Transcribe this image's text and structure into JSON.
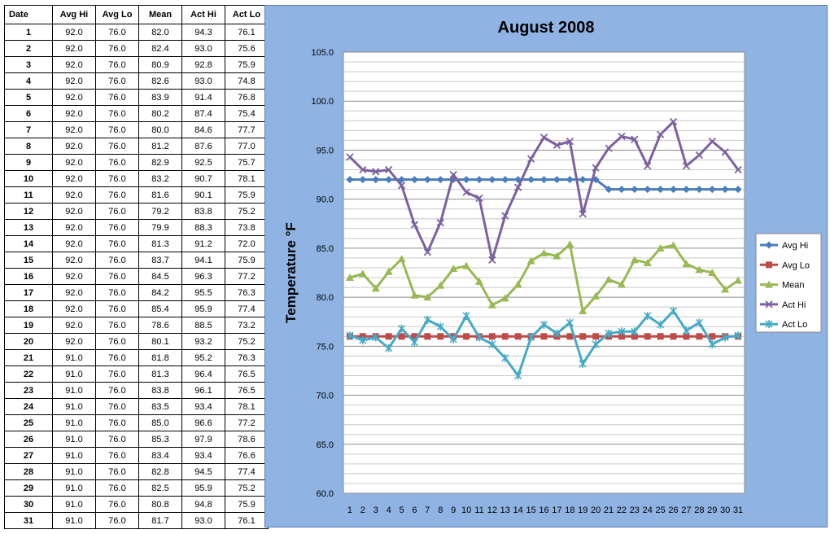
{
  "table": {
    "headers": [
      "Date",
      "Avg Hi",
      "Avg Lo",
      "Mean",
      "Act Hi",
      "Act Lo"
    ],
    "rows": [
      [
        "1",
        "92.0",
        "76.0",
        "82.0",
        "94.3",
        "76.1"
      ],
      [
        "2",
        "92.0",
        "76.0",
        "82.4",
        "93.0",
        "75.6"
      ],
      [
        "3",
        "92.0",
        "76.0",
        "80.9",
        "92.8",
        "75.9"
      ],
      [
        "4",
        "92.0",
        "76.0",
        "82.6",
        "93.0",
        "74.8"
      ],
      [
        "5",
        "92.0",
        "76.0",
        "83.9",
        "91.4",
        "76.8"
      ],
      [
        "6",
        "92.0",
        "76.0",
        "80.2",
        "87.4",
        "75.4"
      ],
      [
        "7",
        "92.0",
        "76.0",
        "80.0",
        "84.6",
        "77.7"
      ],
      [
        "8",
        "92.0",
        "76.0",
        "81.2",
        "87.6",
        "77.0"
      ],
      [
        "9",
        "92.0",
        "76.0",
        "82.9",
        "92.5",
        "75.7"
      ],
      [
        "10",
        "92.0",
        "76.0",
        "83.2",
        "90.7",
        "78.1"
      ],
      [
        "11",
        "92.0",
        "76.0",
        "81.6",
        "90.1",
        "75.9"
      ],
      [
        "12",
        "92.0",
        "76.0",
        "79.2",
        "83.8",
        "75.2"
      ],
      [
        "13",
        "92.0",
        "76.0",
        "79.9",
        "88.3",
        "73.8"
      ],
      [
        "14",
        "92.0",
        "76.0",
        "81.3",
        "91.2",
        "72.0"
      ],
      [
        "15",
        "92.0",
        "76.0",
        "83.7",
        "94.1",
        "75.9"
      ],
      [
        "16",
        "92.0",
        "76.0",
        "84.5",
        "96.3",
        "77.2"
      ],
      [
        "17",
        "92.0",
        "76.0",
        "84.2",
        "95.5",
        "76.3"
      ],
      [
        "18",
        "92.0",
        "76.0",
        "85.4",
        "95.9",
        "77.4"
      ],
      [
        "19",
        "92.0",
        "76.0",
        "78.6",
        "88.5",
        "73.2"
      ],
      [
        "20",
        "92.0",
        "76.0",
        "80.1",
        "93.2",
        "75.2"
      ],
      [
        "21",
        "91.0",
        "76.0",
        "81.8",
        "95.2",
        "76.3"
      ],
      [
        "22",
        "91.0",
        "76.0",
        "81.3",
        "96.4",
        "76.5"
      ],
      [
        "23",
        "91.0",
        "76.0",
        "83.8",
        "96.1",
        "76.5"
      ],
      [
        "24",
        "91.0",
        "76.0",
        "83.5",
        "93.4",
        "78.1"
      ],
      [
        "25",
        "91.0",
        "76.0",
        "85.0",
        "96.6",
        "77.2"
      ],
      [
        "26",
        "91.0",
        "76.0",
        "85.3",
        "97.9",
        "78.6"
      ],
      [
        "27",
        "91.0",
        "76.0",
        "83.4",
        "93.4",
        "76.6"
      ],
      [
        "28",
        "91.0",
        "76.0",
        "82.8",
        "94.5",
        "77.4"
      ],
      [
        "29",
        "91.0",
        "76.0",
        "82.5",
        "95.9",
        "75.2"
      ],
      [
        "30",
        "91.0",
        "76.0",
        "80.8",
        "94.8",
        "75.9"
      ],
      [
        "31",
        "91.0",
        "76.0",
        "81.7",
        "93.0",
        "76.1"
      ]
    ]
  },
  "chart_data": {
    "type": "line",
    "title": "August 2008",
    "xlabel": "",
    "ylabel": "Temperature °F",
    "x": [
      1,
      2,
      3,
      4,
      5,
      6,
      7,
      8,
      9,
      10,
      11,
      12,
      13,
      14,
      15,
      16,
      17,
      18,
      19,
      20,
      21,
      22,
      23,
      24,
      25,
      26,
      27,
      28,
      29,
      30,
      31
    ],
    "ylim": [
      60,
      105
    ],
    "ytick_values": [
      60,
      65,
      70,
      75,
      80,
      85,
      90,
      95,
      100,
      105
    ],
    "ytick_labels": [
      "60.0",
      "65.0",
      "70.0",
      "75.0",
      "80.0",
      "85.0",
      "90.0",
      "95.0",
      "100.0",
      "105.0"
    ],
    "grid": true,
    "legend_position": "right",
    "series": [
      {
        "name": "Avg Hi",
        "color": "#4a7ebb",
        "marker": "diamond",
        "values": [
          92.0,
          92.0,
          92.0,
          92.0,
          92.0,
          92.0,
          92.0,
          92.0,
          92.0,
          92.0,
          92.0,
          92.0,
          92.0,
          92.0,
          92.0,
          92.0,
          92.0,
          92.0,
          92.0,
          92.0,
          91.0,
          91.0,
          91.0,
          91.0,
          91.0,
          91.0,
          91.0,
          91.0,
          91.0,
          91.0,
          91.0
        ]
      },
      {
        "name": "Avg Lo",
        "color": "#be4b48",
        "marker": "square",
        "values": [
          76.0,
          76.0,
          76.0,
          76.0,
          76.0,
          76.0,
          76.0,
          76.0,
          76.0,
          76.0,
          76.0,
          76.0,
          76.0,
          76.0,
          76.0,
          76.0,
          76.0,
          76.0,
          76.0,
          76.0,
          76.0,
          76.0,
          76.0,
          76.0,
          76.0,
          76.0,
          76.0,
          76.0,
          76.0,
          76.0,
          76.0
        ]
      },
      {
        "name": "Mean",
        "color": "#98b954",
        "marker": "triangle",
        "values": [
          82.0,
          82.4,
          80.9,
          82.6,
          83.9,
          80.2,
          80.0,
          81.2,
          82.9,
          83.2,
          81.6,
          79.2,
          79.9,
          81.3,
          83.7,
          84.5,
          84.2,
          85.4,
          78.6,
          80.1,
          81.8,
          81.3,
          83.8,
          83.5,
          85.0,
          85.3,
          83.4,
          82.8,
          82.5,
          80.8,
          81.7
        ]
      },
      {
        "name": "Act Hi",
        "color": "#7d60a0",
        "marker": "x",
        "values": [
          94.3,
          93.0,
          92.8,
          93.0,
          91.4,
          87.4,
          84.6,
          87.6,
          92.5,
          90.7,
          90.1,
          83.8,
          88.3,
          91.2,
          94.1,
          96.3,
          95.5,
          95.9,
          88.5,
          93.2,
          95.2,
          96.4,
          96.1,
          93.4,
          96.6,
          97.9,
          93.4,
          94.5,
          95.9,
          94.8,
          93.0
        ]
      },
      {
        "name": "Act Lo",
        "color": "#46aac5",
        "marker": "star",
        "values": [
          76.1,
          75.6,
          75.9,
          74.8,
          76.8,
          75.4,
          77.7,
          77.0,
          75.7,
          78.1,
          75.9,
          75.2,
          73.8,
          72.0,
          75.9,
          77.2,
          76.3,
          77.4,
          73.2,
          75.2,
          76.3,
          76.5,
          76.5,
          78.1,
          77.2,
          78.6,
          76.6,
          77.4,
          75.2,
          75.9,
          76.1
        ]
      }
    ]
  }
}
